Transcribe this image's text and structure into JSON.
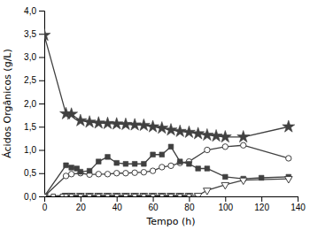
{
  "chart_data": {
    "type": "line",
    "xlabel": "Tempo (h)",
    "ylabel": "Ácidos Orgânicos (g/L)",
    "xlim": [
      0,
      140
    ],
    "ylim": [
      0.0,
      4.0
    ],
    "xticks": [
      0,
      20,
      40,
      60,
      80,
      100,
      120,
      140
    ],
    "yticks": [
      {
        "value": 0.0,
        "label": "0,0"
      },
      {
        "value": 0.5,
        "label": "0,5"
      },
      {
        "value": 1.0,
        "label": "1,0"
      },
      {
        "value": 1.5,
        "label": "1,5"
      },
      {
        "value": 2.0,
        "label": "2,0"
      },
      {
        "value": 2.5,
        "label": "2,5"
      },
      {
        "value": 3.0,
        "label": "3,0"
      },
      {
        "value": 3.5,
        "label": "3,5"
      },
      {
        "value": 4.0,
        "label": "4,0"
      }
    ],
    "grid": false,
    "series": [
      {
        "color": "#404040",
        "marker": "star",
        "x": [
          0,
          12,
          15,
          20,
          25,
          30,
          35,
          40,
          45,
          50,
          55,
          60,
          65,
          70,
          75,
          80,
          85,
          90,
          95,
          100,
          110,
          135
        ],
        "values": [
          3.47,
          1.78,
          1.77,
          1.63,
          1.6,
          1.58,
          1.57,
          1.56,
          1.55,
          1.54,
          1.53,
          1.5,
          1.47,
          1.43,
          1.4,
          1.38,
          1.35,
          1.32,
          1.3,
          1.28,
          1.28,
          1.5
        ]
      },
      {
        "color": "#404040",
        "marker": "circle-open",
        "x": [
          0,
          12,
          15,
          20,
          25,
          30,
          35,
          40,
          45,
          50,
          55,
          60,
          65,
          70,
          75,
          80,
          90,
          100,
          110,
          135
        ],
        "values": [
          0.0,
          0.44,
          0.48,
          0.5,
          0.47,
          0.48,
          0.48,
          0.5,
          0.5,
          0.51,
          0.52,
          0.55,
          0.63,
          0.66,
          0.72,
          0.75,
          1.0,
          1.07,
          1.1,
          0.82
        ]
      },
      {
        "color": "#404040",
        "marker": "square",
        "x": [
          0,
          12,
          15,
          18,
          20,
          25,
          30,
          35,
          40,
          45,
          50,
          55,
          60,
          65,
          70,
          75,
          80,
          85,
          90,
          100,
          110,
          120,
          135
        ],
        "values": [
          0.0,
          0.67,
          0.62,
          0.6,
          0.53,
          0.55,
          0.75,
          0.85,
          0.72,
          0.7,
          0.7,
          0.7,
          0.9,
          0.9,
          1.07,
          0.75,
          0.7,
          0.6,
          0.6,
          0.42,
          0.38,
          0.4,
          0.42
        ]
      },
      {
        "color": "#404040",
        "marker": "triangle-down-open",
        "x": [
          0,
          12,
          15,
          20,
          25,
          30,
          35,
          40,
          45,
          50,
          55,
          60,
          65,
          70,
          75,
          80,
          85,
          90,
          100,
          110,
          135
        ],
        "values": [
          0.0,
          0.02,
          0.02,
          0.02,
          0.02,
          0.02,
          0.02,
          0.02,
          0.02,
          0.02,
          0.02,
          0.02,
          0.02,
          0.02,
          0.02,
          0.02,
          0.02,
          0.13,
          0.25,
          0.35,
          0.38
        ]
      },
      {
        "color": "#404040",
        "marker": "square-open",
        "x": [
          0,
          5,
          10,
          12,
          15,
          20,
          25,
          30,
          35,
          40,
          45,
          50,
          55,
          60,
          65,
          70,
          75,
          80
        ],
        "values": [
          0.0,
          0.005,
          0.005,
          0.005,
          0.005,
          0.005,
          0.005,
          0.005,
          0.005,
          0.005,
          0.005,
          0.005,
          0.005,
          0.005,
          0.005,
          0.005,
          0.005,
          0.005
        ]
      }
    ]
  }
}
